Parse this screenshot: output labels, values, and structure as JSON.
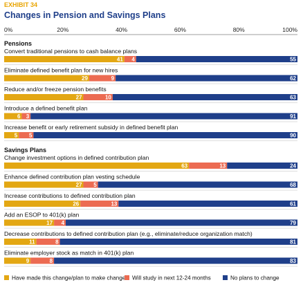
{
  "exhibit_label": "EXHIBIT 34",
  "chart_data": {
    "type": "bar",
    "orientation": "horizontal",
    "stacked": true,
    "title": "Changes in Pension and Savings Plans",
    "xlim": [
      0,
      100
    ],
    "ticks": [
      "0%",
      "20%",
      "40%",
      "60%",
      "80%",
      "100%"
    ],
    "legend_position": "bottom",
    "series": [
      {
        "name": "Have made this change/plan to make change",
        "color": "#e3a713"
      },
      {
        "name": "Will study in next 12-24 months",
        "color": "#ec6b52"
      },
      {
        "name": "No plans to change",
        "color": "#1f3f8a"
      }
    ],
    "groups": [
      {
        "name": "Pensions",
        "items": [
          {
            "label": "Convert traditional pensions to cash balance plans",
            "values": [
              41,
              4,
              55
            ]
          },
          {
            "label": "Eliminate defined benefit plan for new hires",
            "values": [
              29,
              9,
              62
            ]
          },
          {
            "label": "Reduce and/or freeze pension benefits",
            "values": [
              27,
              10,
              63
            ]
          },
          {
            "label": "Introduce a defined benefit plan",
            "values": [
              6,
              3,
              91
            ]
          },
          {
            "label": "Increase benefit or early retirement subsidy in defined benefit plan",
            "values": [
              5,
              5,
              90
            ]
          }
        ]
      },
      {
        "name": "Savings Plans",
        "items": [
          {
            "label": "Change investment options in defined contribution plan",
            "values": [
              63,
              13,
              24
            ]
          },
          {
            "label": "Enhance defined contribution plan vesting schedule",
            "values": [
              27,
              5,
              68
            ]
          },
          {
            "label": "Increase contributions to defined contribution plan",
            "values": [
              26,
              13,
              61
            ]
          },
          {
            "label": "Add an ESOP to 401(k) plan",
            "values": [
              17,
              4,
              79
            ]
          },
          {
            "label": "Decrease contributions to defined contribution plan (e.g., eliminate/reduce organization match)",
            "values": [
              11,
              8,
              81
            ]
          },
          {
            "label": "Eliminate employer stock as match in 401(k) plan",
            "values": [
              9,
              8,
              83
            ]
          }
        ]
      }
    ]
  }
}
